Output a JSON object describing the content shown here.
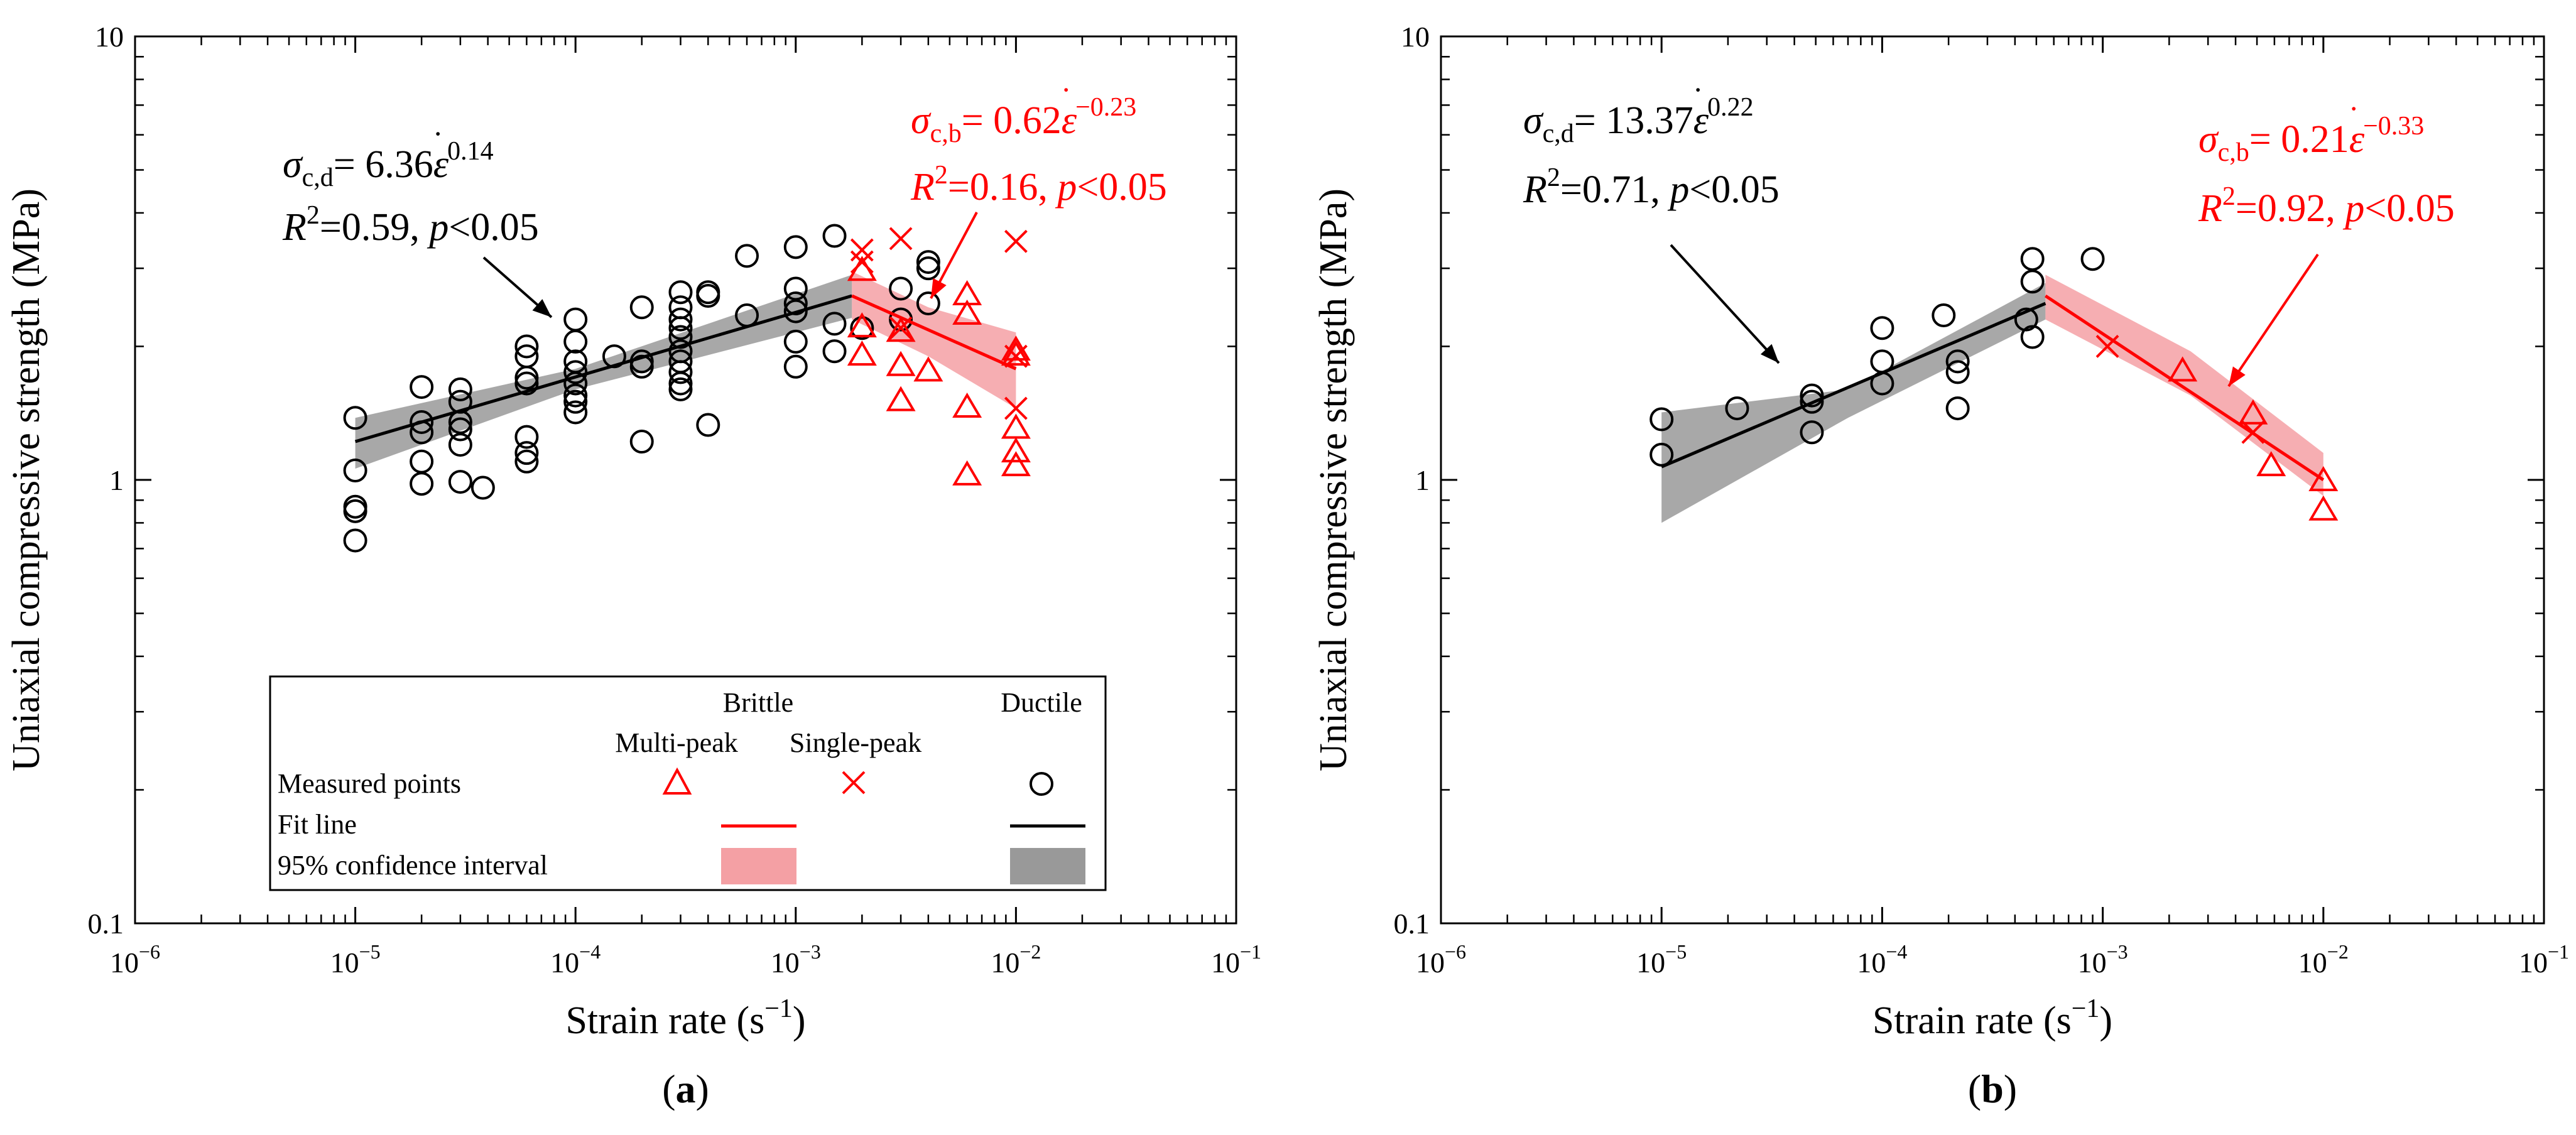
{
  "chart_data": [
    {
      "type": "scatter",
      "panel_label": "a",
      "xlabel": "Strain rate (s",
      "xlabel_sup": "−1",
      "xlabel_close": ")",
      "ylabel": "Uniaxial compressive strength (MPa)",
      "xscale": "log",
      "yscale": "log",
      "xlim": [
        1e-06,
        0.1
      ],
      "ylim": [
        0.1,
        10
      ],
      "x_ticks": [
        {
          "value": 1e-06,
          "base": "10",
          "exp": "−6"
        },
        {
          "value": 1e-05,
          "base": "10",
          "exp": "−5"
        },
        {
          "value": 0.0001,
          "base": "10",
          "exp": "−4"
        },
        {
          "value": 0.001,
          "base": "10",
          "exp": "−3"
        },
        {
          "value": 0.01,
          "base": "10",
          "exp": "−2"
        },
        {
          "value": 0.1,
          "base": "10",
          "exp": "−1"
        }
      ],
      "y_ticks": [
        {
          "value": 0.1,
          "label": "0.1"
        },
        {
          "value": 1,
          "label": "1"
        },
        {
          "value": 10,
          "label": "10"
        }
      ],
      "series": [
        {
          "name": "Ductile measured points",
          "marker": "circle",
          "color": "#000000",
          "points": [
            [
              1e-05,
              1.38
            ],
            [
              1e-05,
              1.05
            ],
            [
              1e-05,
              0.87
            ],
            [
              1e-05,
              0.85
            ],
            [
              1e-05,
              0.73
            ],
            [
              2e-05,
              1.62
            ],
            [
              2e-05,
              1.35
            ],
            [
              2e-05,
              1.28
            ],
            [
              2e-05,
              1.1
            ],
            [
              2e-05,
              0.98
            ],
            [
              3e-05,
              1.6
            ],
            [
              3e-05,
              1.5
            ],
            [
              3e-05,
              1.35
            ],
            [
              3e-05,
              1.3
            ],
            [
              3e-05,
              1.2
            ],
            [
              3e-05,
              0.99
            ],
            [
              3.8e-05,
              0.96
            ],
            [
              6e-05,
              2.0
            ],
            [
              6e-05,
              1.9
            ],
            [
              6e-05,
              1.7
            ],
            [
              6e-05,
              1.65
            ],
            [
              6e-05,
              1.25
            ],
            [
              6e-05,
              1.15
            ],
            [
              6e-05,
              1.1
            ],
            [
              0.0001,
              2.3
            ],
            [
              0.0001,
              2.05
            ],
            [
              0.0001,
              1.85
            ],
            [
              0.0001,
              1.75
            ],
            [
              0.0001,
              1.65
            ],
            [
              0.0001,
              1.55
            ],
            [
              0.0001,
              1.5
            ],
            [
              0.0001,
              1.42
            ],
            [
              0.00015,
              1.9
            ],
            [
              0.0002,
              2.45
            ],
            [
              0.0002,
              1.85
            ],
            [
              0.0002,
              1.8
            ],
            [
              0.0002,
              1.22
            ],
            [
              0.0003,
              2.65
            ],
            [
              0.0003,
              2.45
            ],
            [
              0.0003,
              2.3
            ],
            [
              0.0003,
              2.2
            ],
            [
              0.0003,
              2.1
            ],
            [
              0.0003,
              1.95
            ],
            [
              0.0003,
              1.85
            ],
            [
              0.0003,
              1.75
            ],
            [
              0.0003,
              1.65
            ],
            [
              0.0003,
              1.6
            ],
            [
              0.0004,
              2.65
            ],
            [
              0.0004,
              2.6
            ],
            [
              0.0004,
              1.33
            ],
            [
              0.0006,
              3.2
            ],
            [
              0.0006,
              2.35
            ],
            [
              0.001,
              3.35
            ],
            [
              0.001,
              2.7
            ],
            [
              0.001,
              2.5
            ],
            [
              0.001,
              2.4
            ],
            [
              0.001,
              2.05
            ],
            [
              0.001,
              1.8
            ],
            [
              0.0015,
              3.55
            ],
            [
              0.0015,
              2.25
            ],
            [
              0.0015,
              1.95
            ],
            [
              0.002,
              2.2
            ],
            [
              0.003,
              2.3
            ],
            [
              0.003,
              2.7
            ],
            [
              0.004,
              2.5
            ],
            [
              0.004,
              3.0
            ],
            [
              0.004,
              3.1
            ]
          ]
        },
        {
          "name": "Brittle multi-peak measured points",
          "marker": "triangle",
          "color": "#ff0000",
          "points": [
            [
              0.002,
              2.2
            ],
            [
              0.002,
              1.9
            ],
            [
              0.002,
              2.95
            ],
            [
              0.003,
              2.15
            ],
            [
              0.003,
              1.8
            ],
            [
              0.003,
              1.5
            ],
            [
              0.004,
              1.75
            ],
            [
              0.006,
              2.6
            ],
            [
              0.006,
              2.35
            ],
            [
              0.006,
              1.45
            ],
            [
              0.006,
              1.02
            ],
            [
              0.01,
              1.95
            ],
            [
              0.01,
              1.9
            ],
            [
              0.01,
              1.3
            ],
            [
              0.01,
              1.15
            ],
            [
              0.01,
              1.07
            ]
          ]
        },
        {
          "name": "Brittle single-peak measured points",
          "marker": "cross",
          "color": "#ff0000",
          "points": [
            [
              0.002,
              3.3
            ],
            [
              0.002,
              3.1
            ],
            [
              0.003,
              3.5
            ],
            [
              0.003,
              2.2
            ],
            [
              0.01,
              3.45
            ],
            [
              0.01,
              1.45
            ],
            [
              0.01,
              1.9
            ]
          ]
        },
        {
          "name": "Ductile fit line",
          "type": "line",
          "color": "#000000",
          "x": [
            1e-05,
            0.0018
          ],
          "y": [
            1.22,
            2.6
          ]
        },
        {
          "name": "Brittle fit line",
          "type": "line",
          "color": "#ff0000",
          "x": [
            0.0018,
            0.01
          ],
          "y": [
            2.6,
            1.78
          ]
        },
        {
          "name": "Ductile 95% confidence interval",
          "type": "band",
          "color": "#999999",
          "x": [
            1e-05,
            0.0001,
            0.0018
          ],
          "lower": [
            1.06,
            1.6,
            2.32
          ],
          "upper": [
            1.38,
            1.78,
            2.9
          ]
        },
        {
          "name": "Brittle 95% confidence interval",
          "type": "band",
          "color": "#f4a0a4",
          "x": [
            0.0018,
            0.004,
            0.01
          ],
          "lower": [
            2.3,
            1.9,
            1.45
          ],
          "upper": [
            2.95,
            2.45,
            2.15
          ]
        }
      ],
      "annotations": [
        {
          "id": "ductile-eq",
          "color": "#000000",
          "sigma": "σ",
          "sub": "c,d",
          "eq": "= 6.36",
          "eps": "ε",
          "dot": "˙",
          "exp": "0.14",
          "r2_label": "R",
          "r2_sup": "2",
          "r2_rest": "=0.59, ",
          "p_label": "p",
          "p_rest": "<0.05"
        },
        {
          "id": "brittle-eq",
          "color": "#ff0000",
          "sigma": "σ",
          "sub": "c,b",
          "eq": "= 0.62",
          "eps": "ε",
          "dot": "˙",
          "exp": "−0.23",
          "r2_label": "R",
          "r2_sup": "2",
          "r2_rest": "=0.16, ",
          "p_label": "p",
          "p_rest": "<0.05"
        }
      ],
      "legend": {
        "placement": "bottom-right",
        "group_brittle": "Brittle",
        "group_ductile": "Ductile",
        "col_multi": "Multi-peak",
        "col_single": "Single-peak",
        "row_points": "Measured points",
        "row_fit": "Fit line",
        "row_ci": "95% confidence interval"
      }
    },
    {
      "type": "scatter",
      "panel_label": "b",
      "xlabel": "Strain rate (s",
      "xlabel_sup": "−1",
      "xlabel_close": ")",
      "ylabel": "Uniaxial compressive strength (MPa)",
      "xscale": "log",
      "yscale": "log",
      "xlim": [
        1e-06,
        0.1
      ],
      "ylim": [
        0.1,
        10
      ],
      "x_ticks": [
        {
          "value": 1e-06,
          "base": "10",
          "exp": "−6"
        },
        {
          "value": 1e-05,
          "base": "10",
          "exp": "−5"
        },
        {
          "value": 0.0001,
          "base": "10",
          "exp": "−4"
        },
        {
          "value": 0.001,
          "base": "10",
          "exp": "−3"
        },
        {
          "value": 0.01,
          "base": "10",
          "exp": "−2"
        },
        {
          "value": 0.1,
          "base": "10",
          "exp": "−1"
        }
      ],
      "y_ticks": [
        {
          "value": 0.1,
          "label": "0.1"
        },
        {
          "value": 1,
          "label": "1"
        },
        {
          "value": 10,
          "label": "10"
        }
      ],
      "series": [
        {
          "name": "Ductile measured points",
          "marker": "circle",
          "color": "#000000",
          "points": [
            [
              1e-05,
              1.37
            ],
            [
              1e-05,
              1.14
            ],
            [
              2.2e-05,
              1.45
            ],
            [
              4.8e-05,
              1.55
            ],
            [
              4.8e-05,
              1.5
            ],
            [
              4.8e-05,
              1.28
            ],
            [
              0.0001,
              2.2
            ],
            [
              0.0001,
              1.85
            ],
            [
              0.0001,
              1.65
            ],
            [
              0.00019,
              2.35
            ],
            [
              0.00022,
              1.85
            ],
            [
              0.00022,
              1.75
            ],
            [
              0.00022,
              1.45
            ],
            [
              0.00045,
              2.3
            ],
            [
              0.00048,
              3.15
            ],
            [
              0.00048,
              2.8
            ],
            [
              0.00048,
              2.1
            ],
            [
              0.0009,
              3.15
            ]
          ]
        },
        {
          "name": "Brittle multi-peak measured points",
          "marker": "triangle",
          "color": "#ff0000",
          "points": [
            [
              0.0023,
              1.75
            ],
            [
              0.0048,
              1.4
            ],
            [
              0.0058,
              1.07
            ],
            [
              0.01,
              0.99
            ],
            [
              0.01,
              0.85
            ]
          ]
        },
        {
          "name": "Brittle single-peak measured points",
          "marker": "cross",
          "color": "#ff0000",
          "points": [
            [
              0.00105,
              2.0
            ],
            [
              0.0048,
              1.28
            ]
          ]
        },
        {
          "name": "Ductile fit line",
          "type": "line",
          "color": "#000000",
          "x": [
            1e-05,
            0.00055
          ],
          "y": [
            1.07,
            2.5
          ]
        },
        {
          "name": "Brittle fit line",
          "type": "line",
          "color": "#ff0000",
          "x": [
            0.00055,
            0.01
          ],
          "y": [
            2.6,
            1.0
          ]
        },
        {
          "name": "Ductile 95% confidence interval",
          "type": "band",
          "color": "#999999",
          "x": [
            1e-05,
            7e-05,
            0.00055
          ],
          "lower": [
            0.8,
            1.38,
            2.3
          ],
          "upper": [
            1.42,
            1.6,
            2.78
          ]
        },
        {
          "name": "Brittle 95% confidence interval",
          "type": "band",
          "color": "#f4a0a4",
          "x": [
            0.00055,
            0.0025,
            0.01
          ],
          "lower": [
            2.3,
            1.55,
            0.92
          ],
          "upper": [
            2.9,
            1.95,
            1.15
          ]
        }
      ],
      "annotations": [
        {
          "id": "ductile-eq",
          "color": "#000000",
          "sigma": "σ",
          "sub": "c,d",
          "eq": "= 13.37",
          "eps": "ε",
          "dot": "˙",
          "exp": "0.22",
          "r2_label": "R",
          "r2_sup": "2",
          "r2_rest": "=0.71, ",
          "p_label": "p",
          "p_rest": "<0.05"
        },
        {
          "id": "brittle-eq",
          "color": "#ff0000",
          "sigma": "σ",
          "sub": "c,b",
          "eq": "= 0.21",
          "eps": "ε",
          "dot": "˙",
          "exp": "−0.33",
          "r2_label": "R",
          "r2_sup": "2",
          "r2_rest": "=0.92, ",
          "p_label": "p",
          "p_rest": "<0.05"
        }
      ]
    }
  ]
}
